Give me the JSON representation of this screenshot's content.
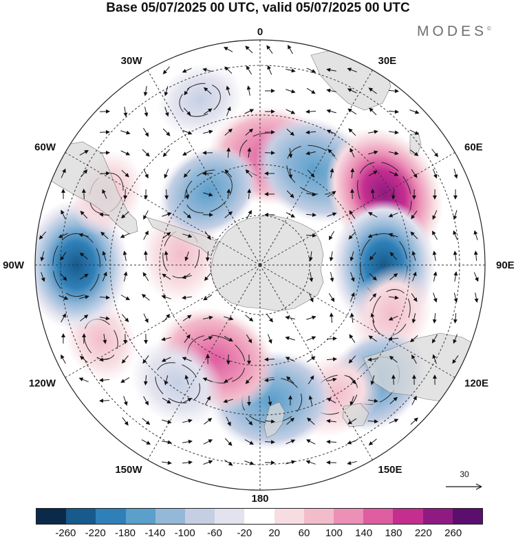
{
  "header": {
    "title": "Base 05/07/2025 00 UTC, valid 05/07/2025 00 UTC"
  },
  "brand": {
    "logo_text": "MODES",
    "mark": "©"
  },
  "map": {
    "projection": "south-polar-stereographic",
    "longitude_labels": [
      {
        "text": "0",
        "lon": 0
      },
      {
        "text": "30E",
        "lon": 30
      },
      {
        "text": "60E",
        "lon": 60
      },
      {
        "text": "90E",
        "lon": 90
      },
      {
        "text": "120E",
        "lon": 120
      },
      {
        "text": "150E",
        "lon": 150
      },
      {
        "text": "180",
        "lon": 180
      },
      {
        "text": "150W",
        "lon": -150
      },
      {
        "text": "120W",
        "lon": -120
      },
      {
        "text": "90W",
        "lon": -90
      },
      {
        "text": "60W",
        "lon": -60
      },
      {
        "text": "30W",
        "lon": -30
      }
    ],
    "reference_vector": {
      "label": "30"
    },
    "colors": {
      "land": "#d9d9d9",
      "grid": "#333333"
    },
    "anomaly_centers": [
      {
        "sign": "positive",
        "lon": 5,
        "lat_frac": 0.55,
        "strength": 180
      },
      {
        "sign": "negative",
        "lon": 30,
        "lat_frac": 0.55,
        "strength": -180
      },
      {
        "sign": "positive",
        "lon": 60,
        "lat_frac": 0.72,
        "strength": 220
      },
      {
        "sign": "negative",
        "lon": 90,
        "lat_frac": 0.62,
        "strength": -200
      },
      {
        "sign": "positive",
        "lon": 110,
        "lat_frac": 0.7,
        "strength": 100
      },
      {
        "sign": "negative",
        "lon": 135,
        "lat_frac": 0.82,
        "strength": -140
      },
      {
        "sign": "positive",
        "lon": 150,
        "lat_frac": 0.75,
        "strength": 100
      },
      {
        "sign": "negative",
        "lon": 175,
        "lat_frac": 0.68,
        "strength": -180
      },
      {
        "sign": "positive",
        "lon": -155,
        "lat_frac": 0.52,
        "strength": 180
      },
      {
        "sign": "negative",
        "lon": -145,
        "lat_frac": 0.72,
        "strength": -100
      },
      {
        "sign": "positive",
        "lon": -115,
        "lat_frac": 0.88,
        "strength": 60
      },
      {
        "sign": "negative",
        "lon": -90,
        "lat_frac": 0.92,
        "strength": -200
      },
      {
        "sign": "positive",
        "lon": -65,
        "lat_frac": 0.85,
        "strength": 60
      },
      {
        "sign": "positive",
        "lon": -82,
        "lat_frac": 0.4,
        "strength": 100
      },
      {
        "sign": "negative",
        "lon": -35,
        "lat_frac": 0.45,
        "strength": -120
      },
      {
        "sign": "negative",
        "lon": -20,
        "lat_frac": 0.88,
        "strength": -60
      }
    ]
  },
  "colorbar": {
    "colors": [
      "#0b2a4a",
      "#175a8c",
      "#2f80b8",
      "#5b9fcb",
      "#93b8d8",
      "#c5cfe4",
      "#e3e3ef",
      "#ffffff",
      "#f7dde2",
      "#f3bccb",
      "#ec90b5",
      "#df5ea1",
      "#c42e8f",
      "#8f1a82",
      "#5b0e6e"
    ],
    "tick_labels": [
      "-260",
      "-220",
      "-180",
      "-140",
      "-100",
      "-60",
      "-20",
      "20",
      "60",
      "100",
      "140",
      "180",
      "220",
      "260"
    ]
  }
}
